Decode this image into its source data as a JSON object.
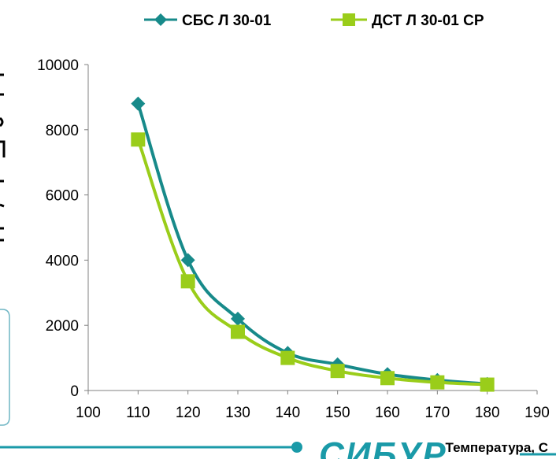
{
  "chart_data": {
    "type": "line",
    "x": [
      110,
      120,
      130,
      140,
      150,
      160,
      170,
      180
    ],
    "xlim": [
      100,
      190
    ],
    "xticks": [
      "100",
      "110",
      "120",
      "130",
      "140",
      "150",
      "160",
      "170",
      "180",
      "190"
    ],
    "ylim": [
      0,
      10000
    ],
    "yticks": [
      "0",
      "2000",
      "4000",
      "6000",
      "8000",
      "10000"
    ],
    "xlabel": "Температура, С",
    "ylabel": "",
    "legend_position": "top",
    "grid": false,
    "series": [
      {
        "name": "СБС Л 30-01",
        "color": "#178a8a",
        "marker": "diamond",
        "values": [
          8800,
          4000,
          2200,
          1150,
          800,
          500,
          320,
          200
        ]
      },
      {
        "name": "ДСТ Л 30-01 СР",
        "color": "#9acd1a",
        "marker": "square",
        "values": [
          7700,
          3350,
          1800,
          1000,
          600,
          380,
          250,
          180
        ]
      }
    ]
  },
  "brand": {
    "logo_text": "СИБУР",
    "line_color": "#1a9aa8"
  }
}
